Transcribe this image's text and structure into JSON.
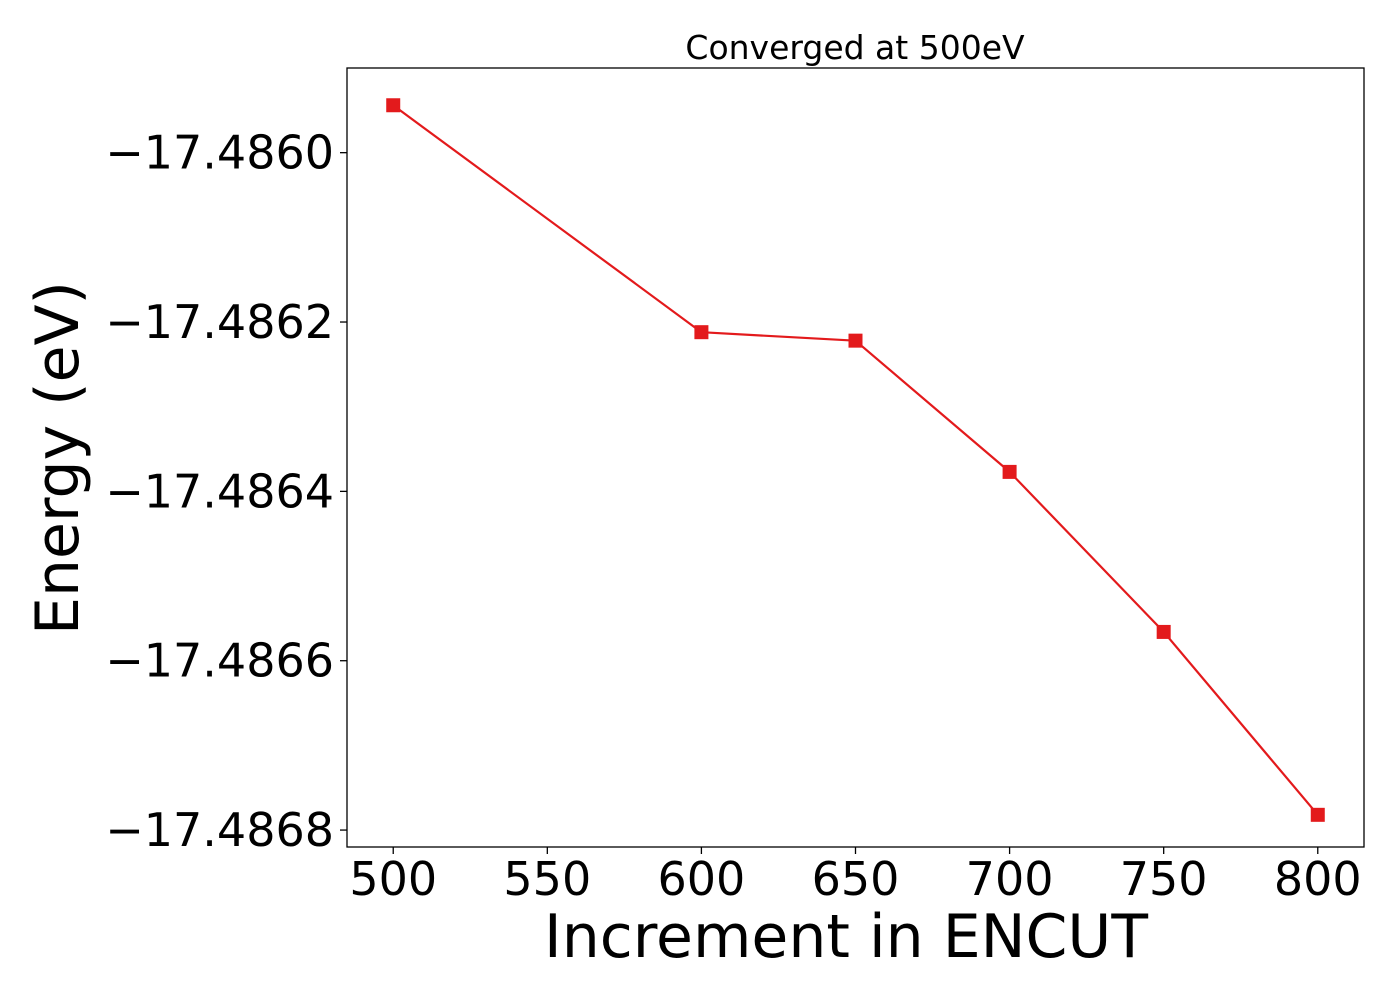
{
  "chart_data": {
    "type": "line",
    "title": "Converged at 500eV",
    "xlabel": "Increment in ENCUT",
    "ylabel": "Energy (eV)",
    "xlim": [
      485,
      815
    ],
    "ylim": [
      -17.48682,
      -17.4859
    ],
    "x_ticks": [
      500,
      550,
      600,
      650,
      700,
      750,
      800
    ],
    "x_tick_labels": [
      "500",
      "550",
      "600",
      "650",
      "700",
      "750",
      "800"
    ],
    "y_ticks": [
      -17.486,
      -17.4862,
      -17.4864,
      -17.4866,
      -17.4868
    ],
    "y_tick_labels": [
      "−17.4860",
      "−17.4862",
      "−17.4864",
      "−17.4866",
      "−17.4868"
    ],
    "grid": false,
    "series": [
      {
        "color": "#e31a1c",
        "marker": "square",
        "x": [
          500,
          600,
          650,
          700,
          750,
          800
        ],
        "y": [
          -17.485944,
          -17.486212,
          -17.486222,
          -17.486377,
          -17.486566,
          -17.486782
        ]
      }
    ]
  }
}
